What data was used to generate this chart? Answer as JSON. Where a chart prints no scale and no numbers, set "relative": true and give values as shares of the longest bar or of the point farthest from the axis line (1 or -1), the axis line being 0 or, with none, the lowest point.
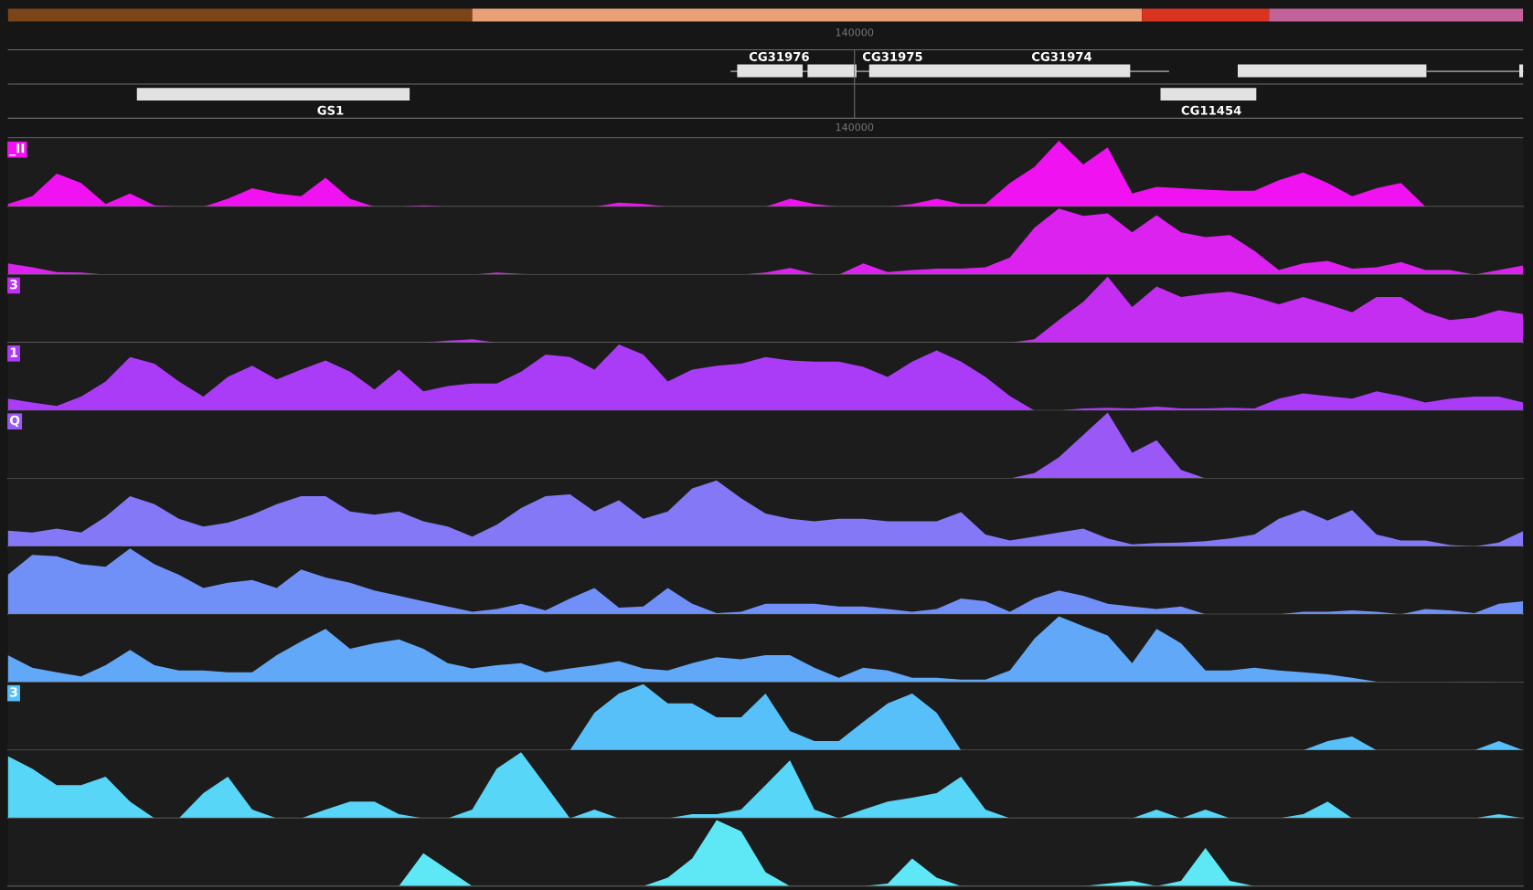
{
  "chart_data": [
    {
      "type": "other",
      "annotations": [
        "140000",
        "CG31976",
        "CG31975",
        "CG31974",
        "GS1",
        "CG11454",
        "140000"
      ]
    },
    {
      "type": "area",
      "relative": true,
      "categories": [
        null,
        null,
        null,
        null,
        null,
        null,
        null,
        null,
        null,
        null,
        null,
        null,
        null,
        null,
        null,
        null,
        null,
        null,
        null,
        null,
        null,
        null,
        null,
        null,
        null,
        null,
        null,
        null,
        null,
        null,
        null,
        null,
        null,
        null,
        null,
        null,
        null,
        null,
        null,
        null,
        null,
        null,
        null,
        null,
        null,
        null,
        null,
        null,
        null,
        null,
        null,
        null,
        null,
        null,
        null,
        null,
        null,
        null,
        null,
        null,
        null,
        null,
        null
      ],
      "series": [
        {
          "name": "_II",
          "color": "#f012f0",
          "values": [
            0.04,
            0.16,
            0.5,
            0.36,
            0.04,
            0.2,
            0.02,
            0,
            0,
            0.12,
            0.28,
            0.2,
            0.16,
            0.44,
            0.12,
            0,
            0,
            0.02,
            0,
            0,
            0,
            0,
            0,
            0,
            0,
            0.06,
            0.04,
            0,
            0,
            0,
            0,
            0,
            0.12,
            0.04,
            0,
            0,
            0,
            0.04,
            0.12,
            0.04,
            0.04,
            0.36,
            0.6,
            1,
            0.64,
            0.9,
            0.2,
            0.3,
            0.28,
            0.26,
            0.24,
            0.24,
            0.4,
            0.52,
            0.36,
            0.16,
            0.28,
            0.36,
            0,
            0,
            0,
            0,
            0
          ]
        }
      ]
    },
    {
      "type": "area",
      "relative": true,
      "categories": [
        null,
        null,
        null,
        null,
        null,
        null,
        null,
        null,
        null,
        null,
        null,
        null,
        null,
        null,
        null,
        null,
        null,
        null,
        null,
        null,
        null,
        null,
        null,
        null,
        null,
        null,
        null,
        null,
        null,
        null,
        null,
        null,
        null,
        null,
        null,
        null,
        null,
        null,
        null,
        null,
        null,
        null,
        null,
        null,
        null,
        null,
        null,
        null,
        null,
        null,
        null,
        null,
        null,
        null,
        null,
        null,
        null,
        null,
        null,
        null,
        null,
        null,
        null
      ],
      "series": [
        {
          "color": "#dc22ee",
          "values": [
            0.17,
            0.11,
            0.04,
            0.03,
            0,
            0,
            0,
            0,
            0,
            0,
            0,
            0,
            0,
            0,
            0,
            0,
            0,
            0,
            0,
            0,
            0.03,
            0.01,
            0,
            0,
            0,
            0,
            0,
            0,
            0,
            0,
            0,
            0.03,
            0.1,
            0.01,
            0,
            0.17,
            0.04,
            0.07,
            0.09,
            0.09,
            0.11,
            0.26,
            0.71,
            1,
            0.89,
            0.93,
            0.64,
            0.9,
            0.64,
            0.57,
            0.6,
            0.36,
            0.07,
            0.17,
            0.21,
            0.09,
            0.11,
            0.19,
            0.07,
            0.07,
            0,
            0.07,
            0.14
          ]
        }
      ]
    },
    {
      "type": "area",
      "relative": true,
      "categories": [
        null,
        null,
        null,
        null,
        null,
        null,
        null,
        null,
        null,
        null,
        null,
        null,
        null,
        null,
        null,
        null,
        null,
        null,
        null,
        null,
        null,
        null,
        null,
        null,
        null,
        null,
        null,
        null,
        null,
        null,
        null,
        null,
        null,
        null,
        null,
        null,
        null,
        null,
        null,
        null,
        null,
        null,
        null,
        null,
        null,
        null,
        null,
        null,
        null,
        null,
        null,
        null,
        null,
        null,
        null,
        null,
        null,
        null,
        null,
        null,
        null,
        null,
        null
      ],
      "series": [
        {
          "name": "3",
          "color": "#c32ef0",
          "values": [
            0,
            0,
            0,
            0,
            0,
            0,
            0,
            0,
            0,
            0,
            0,
            0,
            0,
            0,
            0,
            0,
            0,
            0,
            0.03,
            0.05,
            0,
            0,
            0,
            0,
            0,
            0,
            0,
            0,
            0,
            0,
            0,
            0,
            0,
            0,
            0,
            0,
            0,
            0,
            0,
            0,
            0,
            0,
            0.05,
            0.34,
            0.62,
            1,
            0.54,
            0.85,
            0.69,
            0.74,
            0.77,
            0.69,
            0.58,
            0.69,
            0.58,
            0.46,
            0.69,
            0.69,
            0.46,
            0.34,
            0.38,
            0.49,
            0.43
          ]
        }
      ]
    },
    {
      "type": "area",
      "relative": true,
      "categories": [
        null,
        null,
        null,
        null,
        null,
        null,
        null,
        null,
        null,
        null,
        null,
        null,
        null,
        null,
        null,
        null,
        null,
        null,
        null,
        null,
        null,
        null,
        null,
        null,
        null,
        null,
        null,
        null,
        null,
        null,
        null,
        null,
        null,
        null,
        null,
        null,
        null,
        null,
        null,
        null,
        null,
        null,
        null,
        null,
        null,
        null,
        null,
        null,
        null,
        null,
        null,
        null,
        null,
        null,
        null,
        null,
        null,
        null,
        null,
        null,
        null,
        null,
        null
      ],
      "series": [
        {
          "name": "1",
          "color": "#aa3cf8",
          "values": [
            0.18,
            0.12,
            0.07,
            0.21,
            0.44,
            0.81,
            0.71,
            0.44,
            0.21,
            0.51,
            0.68,
            0.47,
            0.62,
            0.76,
            0.59,
            0.32,
            0.62,
            0.29,
            0.37,
            0.41,
            0.41,
            0.59,
            0.85,
            0.81,
            0.62,
            1,
            0.85,
            0.44,
            0.62,
            0.68,
            0.71,
            0.81,
            0.76,
            0.74,
            0.74,
            0.66,
            0.51,
            0.74,
            0.91,
            0.74,
            0.51,
            0.22,
            0,
            0,
            0.03,
            0.04,
            0.03,
            0.06,
            0.03,
            0.03,
            0.04,
            0.03,
            0.18,
            0.26,
            0.22,
            0.18,
            0.29,
            0.22,
            0.12,
            0.18,
            0.21,
            0.21,
            0.12
          ]
        }
      ]
    },
    {
      "type": "area",
      "relative": true,
      "categories": [
        null,
        null,
        null,
        null,
        null,
        null,
        null,
        null,
        null,
        null,
        null,
        null,
        null,
        null,
        null,
        null,
        null,
        null,
        null,
        null,
        null,
        null,
        null,
        null,
        null,
        null,
        null,
        null,
        null,
        null,
        null,
        null,
        null,
        null,
        null,
        null,
        null,
        null,
        null,
        null,
        null,
        null,
        null,
        null,
        null,
        null,
        null,
        null,
        null,
        null,
        null,
        null,
        null,
        null,
        null,
        null,
        null,
        null,
        null,
        null,
        null,
        null,
        null
      ],
      "series": [
        {
          "name": "Q",
          "color": "#9a58f6",
          "values": [
            0,
            0,
            0,
            0,
            0,
            0,
            0,
            0,
            0,
            0,
            0,
            0,
            0,
            0,
            0,
            0,
            0,
            0,
            0,
            0,
            0,
            0,
            0,
            0,
            0,
            0,
            0,
            0,
            0,
            0,
            0,
            0,
            0,
            0,
            0,
            0,
            0,
            0,
            0,
            0,
            0,
            0,
            0.08,
            0.32,
            0.66,
            1,
            0.39,
            0.58,
            0.13,
            0,
            0,
            0,
            0,
            0,
            0,
            0,
            0,
            0,
            0,
            0,
            0,
            0,
            0
          ]
        }
      ]
    },
    {
      "type": "area",
      "relative": true,
      "categories": [
        null,
        null,
        null,
        null,
        null,
        null,
        null,
        null,
        null,
        null,
        null,
        null,
        null,
        null,
        null,
        null,
        null,
        null,
        null,
        null,
        null,
        null,
        null,
        null,
        null,
        null,
        null,
        null,
        null,
        null,
        null,
        null,
        null,
        null,
        null,
        null,
        null,
        null,
        null,
        null,
        null,
        null,
        null,
        null,
        null,
        null,
        null,
        null,
        null,
        null,
        null,
        null,
        null,
        null,
        null,
        null,
        null,
        null,
        null,
        null,
        null,
        null,
        null
      ],
      "series": [
        {
          "color": "#8478f6",
          "values": [
            0.24,
            0.21,
            0.27,
            0.21,
            0.45,
            0.76,
            0.64,
            0.42,
            0.3,
            0.36,
            0.48,
            0.64,
            0.76,
            0.76,
            0.53,
            0.48,
            0.53,
            0.38,
            0.3,
            0.15,
            0.33,
            0.58,
            0.76,
            0.79,
            0.53,
            0.7,
            0.42,
            0.53,
            0.88,
            1,
            0.73,
            0.5,
            0.42,
            0.38,
            0.42,
            0.42,
            0.38,
            0.38,
            0.38,
            0.52,
            0.18,
            0.09,
            0.15,
            0.21,
            0.27,
            0.12,
            0.03,
            0.05,
            0.06,
            0.08,
            0.12,
            0.18,
            0.42,
            0.55,
            0.39,
            0.55,
            0.18,
            0.09,
            0.09,
            0.02,
            0,
            0.06,
            0.23
          ]
        }
      ]
    },
    {
      "type": "area",
      "relative": true,
      "categories": [
        null,
        null,
        null,
        null,
        null,
        null,
        null,
        null,
        null,
        null,
        null,
        null,
        null,
        null,
        null,
        null,
        null,
        null,
        null,
        null,
        null,
        null,
        null,
        null,
        null,
        null,
        null,
        null,
        null,
        null,
        null,
        null,
        null,
        null,
        null,
        null,
        null,
        null,
        null,
        null,
        null,
        null,
        null,
        null,
        null,
        null,
        null,
        null,
        null,
        null,
        null,
        null,
        null,
        null,
        null,
        null,
        null,
        null,
        null,
        null,
        null,
        null,
        null
      ],
      "series": [
        {
          "color": "#7090f8",
          "values": [
            0.6,
            0.9,
            0.88,
            0.76,
            0.72,
            1,
            0.76,
            0.6,
            0.4,
            0.48,
            0.52,
            0.4,
            0.68,
            0.56,
            0.48,
            0.36,
            0.28,
            0.2,
            0.12,
            0.04,
            0.08,
            0.16,
            0.06,
            0.24,
            0.4,
            0.1,
            0.12,
            0.4,
            0.16,
            0.02,
            0.04,
            0.16,
            0.16,
            0.16,
            0.12,
            0.12,
            0.08,
            0.04,
            0.08,
            0.24,
            0.2,
            0.04,
            0.24,
            0.36,
            0.28,
            0.16,
            0.12,
            0.08,
            0.12,
            0,
            0,
            0,
            0,
            0.04,
            0.04,
            0.06,
            0.04,
            0,
            0.08,
            0.06,
            0.02,
            0.16,
            0.2
          ]
        }
      ]
    },
    {
      "type": "area",
      "relative": true,
      "categories": [
        null,
        null,
        null,
        null,
        null,
        null,
        null,
        null,
        null,
        null,
        null,
        null,
        null,
        null,
        null,
        null,
        null,
        null,
        null,
        null,
        null,
        null,
        null,
        null,
        null,
        null,
        null,
        null,
        null,
        null,
        null,
        null,
        null,
        null,
        null,
        null,
        null,
        null,
        null,
        null,
        null,
        null,
        null,
        null,
        null,
        null,
        null,
        null,
        null,
        null,
        null,
        null,
        null,
        null,
        null,
        null,
        null,
        null,
        null,
        null,
        null,
        null,
        null
      ],
      "series": [
        {
          "color": "#62a8f8",
          "values": [
            0.41,
            0.22,
            0.15,
            0.09,
            0.26,
            0.49,
            0.26,
            0.18,
            0.18,
            0.15,
            0.15,
            0.41,
            0.62,
            0.81,
            0.51,
            0.59,
            0.65,
            0.51,
            0.29,
            0.21,
            0.26,
            0.29,
            0.15,
            0.21,
            0.26,
            0.32,
            0.21,
            0.18,
            0.29,
            0.38,
            0.35,
            0.41,
            0.41,
            0.22,
            0.07,
            0.22,
            0.18,
            0.07,
            0.07,
            0.04,
            0.04,
            0.18,
            0.66,
            1,
            0.85,
            0.71,
            0.29,
            0.81,
            0.59,
            0.18,
            0.18,
            0.22,
            0.18,
            0.15,
            0.12,
            0.07,
            0.01,
            0,
            0,
            0,
            0.01,
            0,
            0
          ]
        }
      ]
    },
    {
      "type": "area",
      "relative": true,
      "categories": [
        null,
        null,
        null,
        null,
        null,
        null,
        null,
        null,
        null,
        null,
        null,
        null,
        null,
        null,
        null,
        null,
        null,
        null,
        null,
        null,
        null,
        null,
        null,
        null,
        null,
        null,
        null,
        null,
        null,
        null,
        null,
        null,
        null,
        null,
        null,
        null,
        null,
        null,
        null,
        null,
        null,
        null,
        null,
        null,
        null,
        null,
        null,
        null,
        null,
        null,
        null,
        null,
        null,
        null,
        null,
        null,
        null,
        null,
        null,
        null,
        null,
        null,
        null
      ],
      "series": [
        {
          "name": "3",
          "color": "#58c0f8",
          "values": [
            0,
            0,
            0,
            0,
            0,
            0,
            0,
            0,
            0,
            0,
            0,
            0,
            0,
            0,
            0,
            0,
            0,
            0,
            0,
            0,
            0,
            0,
            0,
            0,
            0.57,
            0.86,
            1,
            0.71,
            0.71,
            0.5,
            0.5,
            0.86,
            0.29,
            0.14,
            0.14,
            0.43,
            0.71,
            0.86,
            0.57,
            0,
            0,
            0,
            0,
            0,
            0,
            0,
            0,
            0,
            0,
            0,
            0,
            0,
            0,
            0,
            0.14,
            0.21,
            0,
            0,
            0,
            0,
            0,
            0.14,
            0
          ]
        }
      ]
    },
    {
      "type": "area",
      "relative": true,
      "categories": [
        null,
        null,
        null,
        null,
        null,
        null,
        null,
        null,
        null,
        null,
        null,
        null,
        null,
        null,
        null,
        null,
        null,
        null,
        null,
        null,
        null,
        null,
        null,
        null,
        null,
        null,
        null,
        null,
        null,
        null,
        null,
        null,
        null,
        null,
        null,
        null,
        null,
        null,
        null,
        null,
        null,
        null,
        null,
        null,
        null,
        null,
        null,
        null,
        null,
        null,
        null,
        null,
        null,
        null,
        null,
        null,
        null,
        null,
        null,
        null,
        null,
        null,
        null
      ],
      "series": [
        {
          "color": "#58d6f8",
          "values": [
            0.94,
            0.75,
            0.5,
            0.5,
            0.63,
            0.25,
            0,
            0,
            0.38,
            0.63,
            0.13,
            0,
            0,
            0.13,
            0.25,
            0.25,
            0.06,
            0,
            0,
            0.13,
            0.75,
            1,
            0.5,
            0,
            0.13,
            0,
            0,
            0,
            0.06,
            0.06,
            0.13,
            0.5,
            0.88,
            0.13,
            0,
            0.13,
            0.25,
            0.31,
            0.38,
            0.63,
            0.13,
            0,
            0,
            0,
            0,
            0,
            0,
            0.13,
            0,
            0.13,
            0,
            0,
            0,
            0.06,
            0.25,
            0,
            0,
            0,
            0,
            0,
            0,
            0.06,
            0
          ]
        }
      ]
    },
    {
      "type": "area",
      "relative": true,
      "categories": [
        null,
        null,
        null,
        null,
        null,
        null,
        null,
        null,
        null,
        null,
        null,
        null,
        null,
        null,
        null,
        null,
        null,
        null,
        null,
        null,
        null,
        null,
        null,
        null,
        null,
        null,
        null,
        null,
        null,
        null,
        null,
        null,
        null,
        null,
        null,
        null,
        null,
        null,
        null,
        null,
        null,
        null,
        null,
        null,
        null,
        null,
        null,
        null,
        null,
        null,
        null,
        null,
        null,
        null,
        null,
        null,
        null,
        null,
        null,
        null,
        null,
        null,
        null
      ],
      "series": [
        {
          "color": "#5ee8f6",
          "values": [
            0,
            0,
            0,
            0,
            0,
            0,
            0,
            0,
            0,
            0,
            0,
            0,
            0,
            0,
            0,
            0,
            0,
            0.5,
            0.25,
            0,
            0,
            0,
            0,
            0,
            0,
            0,
            0,
            0.13,
            0.42,
            1,
            0.83,
            0.21,
            0,
            0,
            0,
            0,
            0.04,
            0.42,
            0.13,
            0,
            0,
            0,
            0,
            0,
            0,
            0.04,
            0.08,
            0,
            0.08,
            0.58,
            0.08,
            0,
            0,
            0,
            0,
            0,
            0,
            0,
            0,
            0,
            0,
            0,
            0
          ]
        }
      ]
    }
  ]
}
